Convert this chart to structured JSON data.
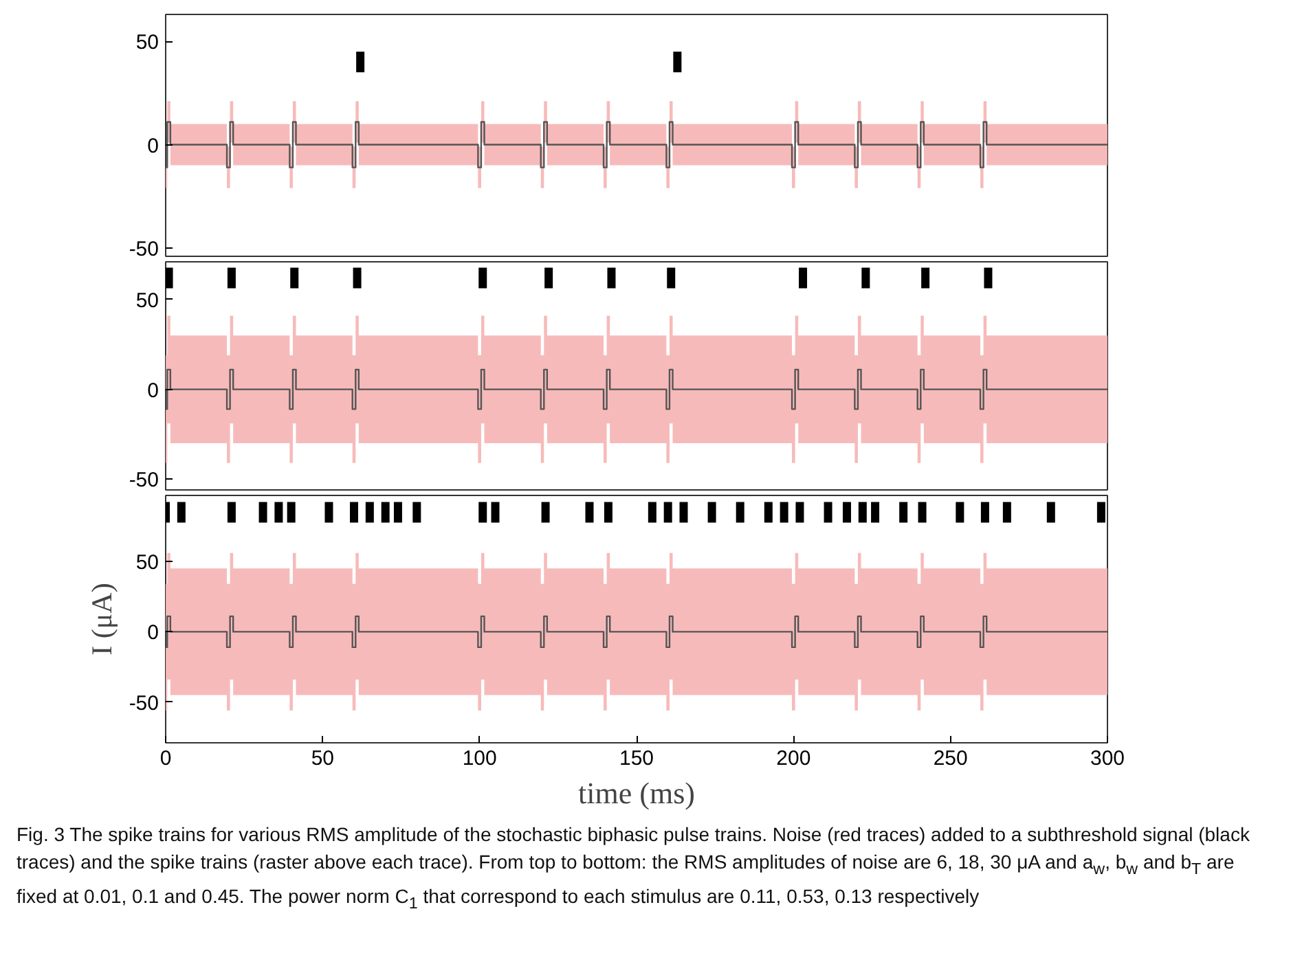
{
  "chart_data": [
    {
      "type": "line",
      "xlim": [
        0,
        300
      ],
      "xticks": [
        0,
        50,
        100,
        150,
        200,
        250,
        300
      ],
      "ylim": [
        -54,
        63
      ],
      "yticks": [
        -50,
        0,
        50
      ],
      "tick_labels": "y",
      "grid": false,
      "series": [
        {
          "color": "#555555",
          "x": [
            0,
            0,
            0.5,
            0.5,
            1.5,
            1.5,
            19.5,
            19.5,
            20.5,
            20.5,
            21.5,
            21.5,
            39.5,
            39.5,
            40.5,
            40.5,
            41.5,
            41.5,
            59.5,
            59.5,
            60.5,
            60.5,
            61.5,
            61.5,
            99.5,
            99.5,
            100.5,
            100.5,
            101.5,
            101.5,
            119.5,
            119.5,
            120.5,
            120.5,
            121.5,
            121.5,
            139.5,
            139.5,
            140.5,
            140.5,
            141.5,
            141.5,
            159.5,
            159.5,
            160.5,
            160.5,
            161.5,
            161.5,
            199.5,
            199.5,
            200.5,
            200.5,
            201.5,
            201.5,
            219.5,
            219.5,
            220.5,
            220.5,
            221.5,
            221.5,
            239.5,
            239.5,
            240.5,
            240.5,
            241.5,
            241.5,
            259.5,
            259.5,
            260.5,
            260.5,
            261.5,
            261.5,
            300
          ],
          "values": [
            0,
            -11,
            -11,
            11,
            11,
            0,
            0,
            -11,
            -11,
            11,
            11,
            0,
            0,
            -11,
            -11,
            11,
            11,
            0,
            0,
            -11,
            -11,
            11,
            11,
            0,
            0,
            -11,
            -11,
            11,
            11,
            0,
            0,
            -11,
            -11,
            11,
            11,
            0,
            0,
            -11,
            -11,
            11,
            11,
            0,
            0,
            -11,
            -11,
            11,
            11,
            0,
            0,
            -11,
            -11,
            11,
            11,
            0,
            0,
            -11,
            -11,
            11,
            11,
            0,
            0,
            -11,
            -11,
            11,
            11,
            0,
            0,
            -11,
            -11,
            11,
            11,
            0,
            0
          ],
          "upper": [
            10,
            -1,
            -1,
            21,
            21,
            10,
            10,
            -1,
            -1,
            21,
            21,
            10,
            10,
            -1,
            -1,
            21,
            21,
            10,
            10,
            -1,
            -1,
            21,
            21,
            10,
            10,
            -1,
            -1,
            21,
            21,
            10,
            10,
            -1,
            -1,
            21,
            21,
            10,
            10,
            -1,
            -1,
            21,
            21,
            10,
            10,
            -1,
            -1,
            21,
            21,
            10,
            10,
            -1,
            -1,
            21,
            21,
            10,
            10,
            -1,
            -1,
            21,
            21,
            10,
            10,
            -1,
            -1,
            21,
            21,
            10,
            10,
            -1,
            -1,
            21,
            21,
            10,
            10
          ],
          "lower": [
            -10,
            -21,
            -21,
            1,
            1,
            -10,
            -10,
            -21,
            -21,
            1,
            1,
            -10,
            -10,
            -21,
            -21,
            1,
            1,
            -10,
            -10,
            -21,
            -21,
            1,
            1,
            -10,
            -10,
            -21,
            -21,
            1,
            1,
            -10,
            -10,
            -21,
            -21,
            1,
            1,
            -10,
            -10,
            -21,
            -21,
            1,
            1,
            -10,
            -10,
            -21,
            -21,
            1,
            1,
            -10,
            -10,
            -21,
            -21,
            1,
            1,
            -10,
            -10,
            -21,
            -21,
            1,
            1,
            -10,
            -10,
            -21,
            -21,
            1,
            1,
            -10,
            -10,
            -21,
            -21,
            1,
            1,
            -10,
            -10
          ]
        },
        {
          "type": "scatter",
          "marker": "square",
          "color": "#000000",
          "x": [
            62,
            163
          ],
          "values": [
            40,
            40
          ]
        }
      ]
    },
    {
      "type": "line",
      "xlim": [
        0,
        300
      ],
      "xticks": [
        0,
        50,
        100,
        150,
        200,
        250,
        300
      ],
      "ylim": [
        -56,
        71
      ],
      "yticks": [
        -50,
        0,
        50
      ],
      "tick_labels": "y",
      "grid": false,
      "series": [
        {
          "color": "#555555",
          "x": [
            0,
            0,
            0.5,
            0.5,
            1.5,
            1.5,
            19.5,
            19.5,
            20.5,
            20.5,
            21.5,
            21.5,
            39.5,
            39.5,
            40.5,
            40.5,
            41.5,
            41.5,
            59.5,
            59.5,
            60.5,
            60.5,
            61.5,
            61.5,
            99.5,
            99.5,
            100.5,
            100.5,
            101.5,
            101.5,
            119.5,
            119.5,
            120.5,
            120.5,
            121.5,
            121.5,
            139.5,
            139.5,
            140.5,
            140.5,
            141.5,
            141.5,
            159.5,
            159.5,
            160.5,
            160.5,
            161.5,
            161.5,
            199.5,
            199.5,
            200.5,
            200.5,
            201.5,
            201.5,
            219.5,
            219.5,
            220.5,
            220.5,
            221.5,
            221.5,
            239.5,
            239.5,
            240.5,
            240.5,
            241.5,
            241.5,
            259.5,
            259.5,
            260.5,
            260.5,
            261.5,
            261.5,
            300
          ],
          "values": [
            0,
            -11,
            -11,
            11,
            11,
            0,
            0,
            -11,
            -11,
            11,
            11,
            0,
            0,
            -11,
            -11,
            11,
            11,
            0,
            0,
            -11,
            -11,
            11,
            11,
            0,
            0,
            -11,
            -11,
            11,
            11,
            0,
            0,
            -11,
            -11,
            11,
            11,
            0,
            0,
            -11,
            -11,
            11,
            11,
            0,
            0,
            -11,
            -11,
            11,
            11,
            0,
            0,
            -11,
            -11,
            11,
            11,
            0,
            0,
            -11,
            -11,
            11,
            11,
            0,
            0,
            -11,
            -11,
            11,
            11,
            0,
            0,
            -11,
            -11,
            11,
            11,
            0,
            0
          ],
          "upper": [
            30,
            19,
            19,
            41,
            41,
            30,
            30,
            19,
            19,
            41,
            41,
            30,
            30,
            19,
            19,
            41,
            41,
            30,
            30,
            19,
            19,
            41,
            41,
            30,
            30,
            19,
            19,
            41,
            41,
            30,
            30,
            19,
            19,
            41,
            41,
            30,
            30,
            19,
            19,
            41,
            41,
            30,
            30,
            19,
            19,
            41,
            41,
            30,
            30,
            19,
            19,
            41,
            41,
            30,
            30,
            19,
            19,
            41,
            41,
            30,
            30,
            19,
            19,
            41,
            41,
            30,
            30,
            19,
            19,
            41,
            41,
            30,
            30
          ],
          "lower": [
            -30,
            -41,
            -41,
            -19,
            -19,
            -30,
            -30,
            -41,
            -41,
            -19,
            -19,
            -30,
            -30,
            -41,
            -41,
            -19,
            -19,
            -30,
            -30,
            -41,
            -41,
            -19,
            -19,
            -30,
            -30,
            -41,
            -41,
            -19,
            -19,
            -30,
            -30,
            -41,
            -41,
            -19,
            -19,
            -30,
            -30,
            -41,
            -41,
            -19,
            -19,
            -30,
            -30,
            -41,
            -41,
            -19,
            -19,
            -30,
            -30,
            -41,
            -41,
            -19,
            -19,
            -30,
            -30,
            -41,
            -41,
            -19,
            -19,
            -30,
            -30,
            -41,
            -41,
            -19,
            -19,
            -30,
            -30,
            -41,
            -41,
            -19,
            -19,
            -30,
            -30
          ]
        },
        {
          "type": "scatter",
          "marker": "square",
          "color": "#000000",
          "x": [
            1,
            21,
            41,
            61,
            101,
            122,
            142,
            161,
            203,
            223,
            242,
            262
          ],
          "values": [
            62,
            62,
            62,
            62,
            62,
            62,
            62,
            62,
            62,
            62,
            62,
            62
          ]
        }
      ]
    },
    {
      "type": "line",
      "xlabel": "time (ms)",
      "ylabel": "I (μA)",
      "xlim": [
        0,
        300
      ],
      "xticks": [
        0,
        50,
        100,
        150,
        200,
        250,
        300
      ],
      "ylim": [
        -79,
        97
      ],
      "yticks": [
        -50,
        0,
        50
      ],
      "grid": false,
      "series": [
        {
          "color": "#555555",
          "x": [
            0,
            0,
            0.5,
            0.5,
            1.5,
            1.5,
            19.5,
            19.5,
            20.5,
            20.5,
            21.5,
            21.5,
            39.5,
            39.5,
            40.5,
            40.5,
            41.5,
            41.5,
            59.5,
            59.5,
            60.5,
            60.5,
            61.5,
            61.5,
            99.5,
            99.5,
            100.5,
            100.5,
            101.5,
            101.5,
            119.5,
            119.5,
            120.5,
            120.5,
            121.5,
            121.5,
            139.5,
            139.5,
            140.5,
            140.5,
            141.5,
            141.5,
            159.5,
            159.5,
            160.5,
            160.5,
            161.5,
            161.5,
            199.5,
            199.5,
            200.5,
            200.5,
            201.5,
            201.5,
            219.5,
            219.5,
            220.5,
            220.5,
            221.5,
            221.5,
            239.5,
            239.5,
            240.5,
            240.5,
            241.5,
            241.5,
            259.5,
            259.5,
            260.5,
            260.5,
            261.5,
            261.5,
            300
          ],
          "values": [
            0,
            -11,
            -11,
            11,
            11,
            0,
            0,
            -11,
            -11,
            11,
            11,
            0,
            0,
            -11,
            -11,
            11,
            11,
            0,
            0,
            -11,
            -11,
            11,
            11,
            0,
            0,
            -11,
            -11,
            11,
            11,
            0,
            0,
            -11,
            -11,
            11,
            11,
            0,
            0,
            -11,
            -11,
            11,
            11,
            0,
            0,
            -11,
            -11,
            11,
            11,
            0,
            0,
            -11,
            -11,
            11,
            11,
            0,
            0,
            -11,
            -11,
            11,
            11,
            0,
            0,
            -11,
            -11,
            11,
            11,
            0,
            0,
            -11,
            -11,
            11,
            11,
            0,
            0
          ],
          "upper": [
            45,
            34,
            34,
            56,
            56,
            45,
            45,
            34,
            34,
            56,
            56,
            45,
            45,
            34,
            34,
            56,
            56,
            45,
            45,
            34,
            34,
            56,
            56,
            45,
            45,
            34,
            34,
            56,
            56,
            45,
            45,
            34,
            34,
            56,
            56,
            45,
            45,
            34,
            34,
            56,
            56,
            45,
            45,
            34,
            34,
            56,
            56,
            45,
            45,
            34,
            34,
            56,
            56,
            45,
            45,
            34,
            34,
            56,
            56,
            45,
            45,
            34,
            34,
            56,
            56,
            45,
            45,
            34,
            34,
            56,
            56,
            45,
            45
          ],
          "lower": [
            -45,
            -56,
            -56,
            -34,
            -34,
            -45,
            -45,
            -56,
            -56,
            -34,
            -34,
            -45,
            -45,
            -56,
            -56,
            -34,
            -34,
            -45,
            -45,
            -56,
            -56,
            -34,
            -34,
            -45,
            -45,
            -56,
            -56,
            -34,
            -34,
            -45,
            -45,
            -56,
            -56,
            -34,
            -34,
            -45,
            -45,
            -56,
            -56,
            -34,
            -34,
            -45,
            -45,
            -56,
            -56,
            -34,
            -34,
            -45,
            -45,
            -56,
            -56,
            -34,
            -34,
            -45,
            -45,
            -56,
            -56,
            -34,
            -34,
            -45,
            -45,
            -56,
            -56,
            -34,
            -34,
            -45,
            -45,
            -56,
            -56,
            -34,
            -34,
            -45,
            -45
          ]
        },
        {
          "type": "scatter",
          "marker": "square",
          "color": "#000000",
          "x": [
            0,
            5,
            21,
            31,
            36,
            40,
            52,
            60,
            65,
            70,
            74,
            80,
            101,
            105,
            121,
            135,
            141,
            155,
            160,
            165,
            174,
            183,
            192,
            197,
            202,
            211,
            217,
            222,
            226,
            235,
            241,
            253,
            261,
            268,
            282,
            298
          ],
          "values": [
            85,
            85,
            85,
            85,
            85,
            85,
            85,
            85,
            85,
            85,
            85,
            85,
            85,
            85,
            85,
            85,
            85,
            85,
            85,
            85,
            85,
            85,
            85,
            85,
            85,
            85,
            85,
            85,
            85,
            85,
            85,
            85,
            85,
            85,
            85,
            85
          ]
        }
      ],
      "annotations": [
        "Fig. 3  The spike trains for various RMS amplitude of the stochastic biphasic pulse trains. Noise (red traces) added to a subthreshold signal (black traces) and the spike trains (raster above each trace). From top to bottom: the RMS amplitudes of noise are 6, 18, 30 μA and a$_{w}$, b$_{w}$ and b$_{T}$ are fixed at 0.01, 0.1 and 0.45. The power norm C$_{1}$ that correspond to each stimulus are 0.11, 0.53, 0.13 respectively"
      ]
    }
  ]
}
